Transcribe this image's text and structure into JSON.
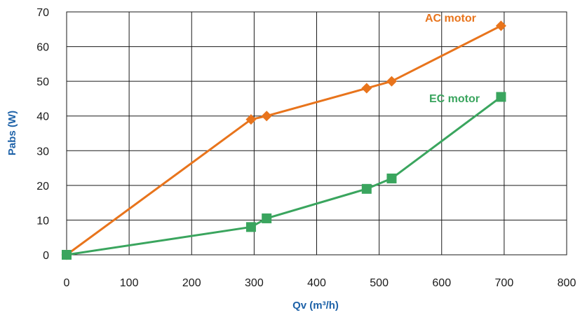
{
  "chart_data": {
    "type": "line",
    "xlabel": "Qv (m³/h)",
    "ylabel": "Pabs (W)",
    "xlim": [
      0,
      800
    ],
    "ylim": [
      0,
      70
    ],
    "x_ticks": [
      0,
      100,
      200,
      300,
      400,
      500,
      600,
      700,
      800
    ],
    "y_ticks": [
      0,
      10,
      20,
      30,
      40,
      50,
      60,
      70
    ],
    "grid": true,
    "legend": "inline labels",
    "series": [
      {
        "name": "AC motor",
        "color": "#e8741c",
        "marker": "diamond",
        "points": [
          {
            "x": 0,
            "y": 0
          },
          {
            "x": 295,
            "y": 39
          },
          {
            "x": 320,
            "y": 40
          },
          {
            "x": 480,
            "y": 48
          },
          {
            "x": 520,
            "y": 50
          },
          {
            "x": 695,
            "y": 66
          }
        ]
      },
      {
        "name": "EC motor",
        "color": "#3aa55e",
        "marker": "square",
        "points": [
          {
            "x": 0,
            "y": 0
          },
          {
            "x": 295,
            "y": 8
          },
          {
            "x": 320,
            "y": 10.5
          },
          {
            "x": 480,
            "y": 19
          },
          {
            "x": 520,
            "y": 22
          },
          {
            "x": 695,
            "y": 45.5
          }
        ]
      }
    ],
    "axis_title_color": "#1e62a8"
  }
}
